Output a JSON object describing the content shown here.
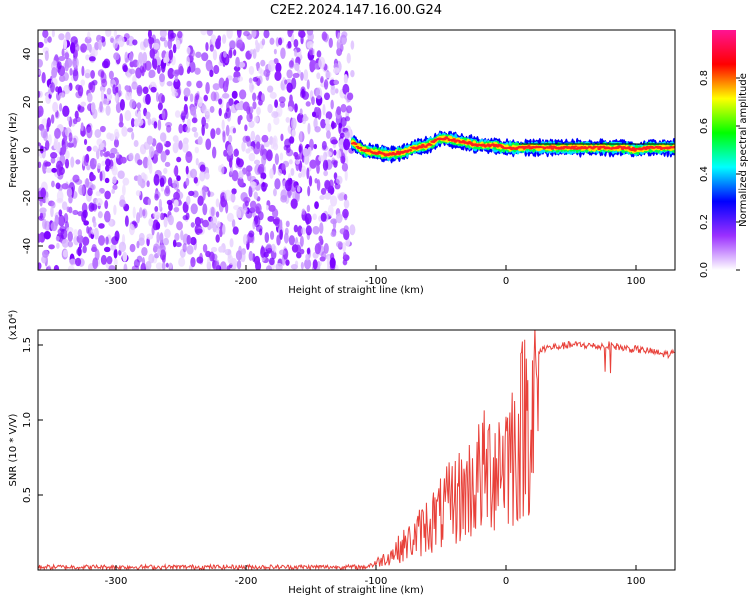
{
  "title": "C2E2.2024.147.16.00.G24",
  "chart_data": [
    {
      "type": "heatmap",
      "xlabel": "Height of straight line (km)",
      "ylabel": "Frequency (Hz)",
      "xlim": [
        -360,
        130
      ],
      "ylim": [
        -50,
        50
      ],
      "x_ticks": [
        -300,
        -200,
        -100,
        0,
        100
      ],
      "y_ticks": [
        -40,
        -20,
        0,
        20,
        40
      ],
      "grid": false,
      "noise_region": {
        "x_range": [
          -360,
          -118
        ],
        "y_range": [
          -50,
          50
        ]
      },
      "signal_trace": {
        "x": [
          -118,
          -110,
          -100,
          -90,
          -80,
          -70,
          -60,
          -50,
          -40,
          -30,
          -20,
          -10,
          0,
          10,
          20,
          40,
          60,
          80,
          90,
          100,
          110,
          120,
          130
        ],
        "y": [
          3,
          0,
          -1,
          -2,
          -1,
          1,
          2,
          5,
          4,
          3,
          2,
          2,
          1,
          1,
          1,
          1,
          1,
          1,
          1,
          0,
          1,
          1,
          1
        ]
      },
      "colorbar": {
        "label": "Normalized spectral amplitude",
        "range": [
          0,
          1
        ],
        "ticks": [
          "0.0",
          "0.2",
          "0.4",
          "0.6",
          "0.8"
        ],
        "colors": [
          "#ffffff",
          "#9b30ff",
          "#0000ff",
          "#00ffff",
          "#00ff00",
          "#ffff00",
          "#ff0000",
          "#ff1493"
        ]
      }
    },
    {
      "type": "line",
      "xlabel": "Height of straight line (km)",
      "ylabel": "SNR (10 * V/V)",
      "y_exponent_label": "(x10⁴)",
      "xlim": [
        -360,
        130
      ],
      "ylim": [
        0,
        1.6
      ],
      "x_ticks": [
        -300,
        -200,
        -100,
        0,
        100
      ],
      "y_ticks": [
        "0.5",
        "1.0",
        "1.5"
      ],
      "grid": false,
      "series_color": "#e8413a",
      "series": [
        {
          "x": [
            -360,
            -300,
            -200,
            -110,
            -100,
            -90,
            -80,
            -70,
            -60,
            -50,
            -40,
            -30,
            -20,
            -10,
            0,
            10,
            15,
            20,
            25,
            30,
            40,
            50,
            60,
            70,
            80,
            90,
            100,
            110,
            120,
            130
          ],
          "values": [
            0.02,
            0.02,
            0.02,
            0.02,
            0.06,
            0.12,
            0.2,
            0.28,
            0.4,
            0.48,
            0.6,
            0.68,
            0.8,
            0.9,
            1.0,
            1.1,
            1.35,
            1.4,
            1.45,
            1.48,
            1.49,
            1.5,
            1.5,
            1.49,
            1.5,
            1.48,
            1.47,
            1.46,
            1.44,
            1.44
          ]
        }
      ]
    }
  ]
}
